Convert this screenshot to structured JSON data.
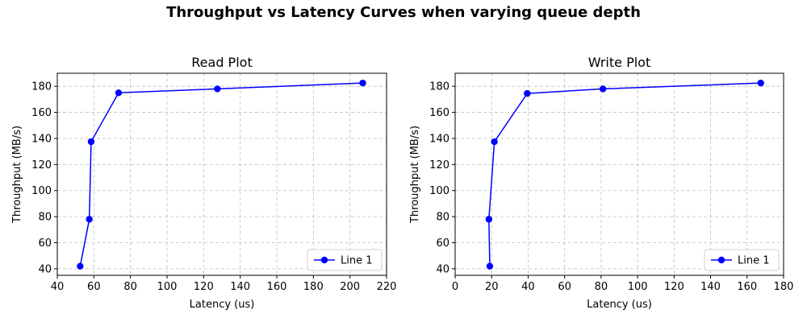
{
  "suptitle": "Throughput vs Latency Curves when varying queue depth",
  "chart_data": [
    {
      "type": "line",
      "title": "Read Plot",
      "xlabel": "Latency (us)",
      "ylabel": "Throughput (MB/s)",
      "xlim": [
        40,
        220
      ],
      "ylim": [
        35,
        190
      ],
      "xticks": [
        40,
        60,
        80,
        100,
        120,
        140,
        160,
        180,
        200,
        220
      ],
      "yticks": [
        40,
        60,
        80,
        100,
        120,
        140,
        160,
        180
      ],
      "grid": true,
      "legend_position": "lower-right",
      "series": [
        {
          "name": "Line 1",
          "color": "#0000ff",
          "marker": "circle",
          "x": [
            52.5,
            57.5,
            58.5,
            73.5,
            127.5,
            207
          ],
          "y": [
            42,
            78,
            137.5,
            175,
            178,
            182.5
          ]
        }
      ]
    },
    {
      "type": "line",
      "title": "Write Plot",
      "xlabel": "Latency (us)",
      "ylabel": "Throughput (MB/s)",
      "xlim": [
        0,
        180
      ],
      "ylim": [
        35,
        190
      ],
      "xticks": [
        0,
        20,
        40,
        60,
        80,
        100,
        120,
        140,
        160,
        180
      ],
      "yticks": [
        40,
        60,
        80,
        100,
        120,
        140,
        160,
        180
      ],
      "grid": true,
      "legend_position": "lower-right",
      "series": [
        {
          "name": "Line 1",
          "color": "#0000ff",
          "marker": "circle",
          "x": [
            19,
            18.5,
            21.5,
            39.5,
            81,
            167.5
          ],
          "y": [
            42,
            78,
            137.5,
            174.5,
            178,
            182.5
          ]
        }
      ]
    }
  ]
}
